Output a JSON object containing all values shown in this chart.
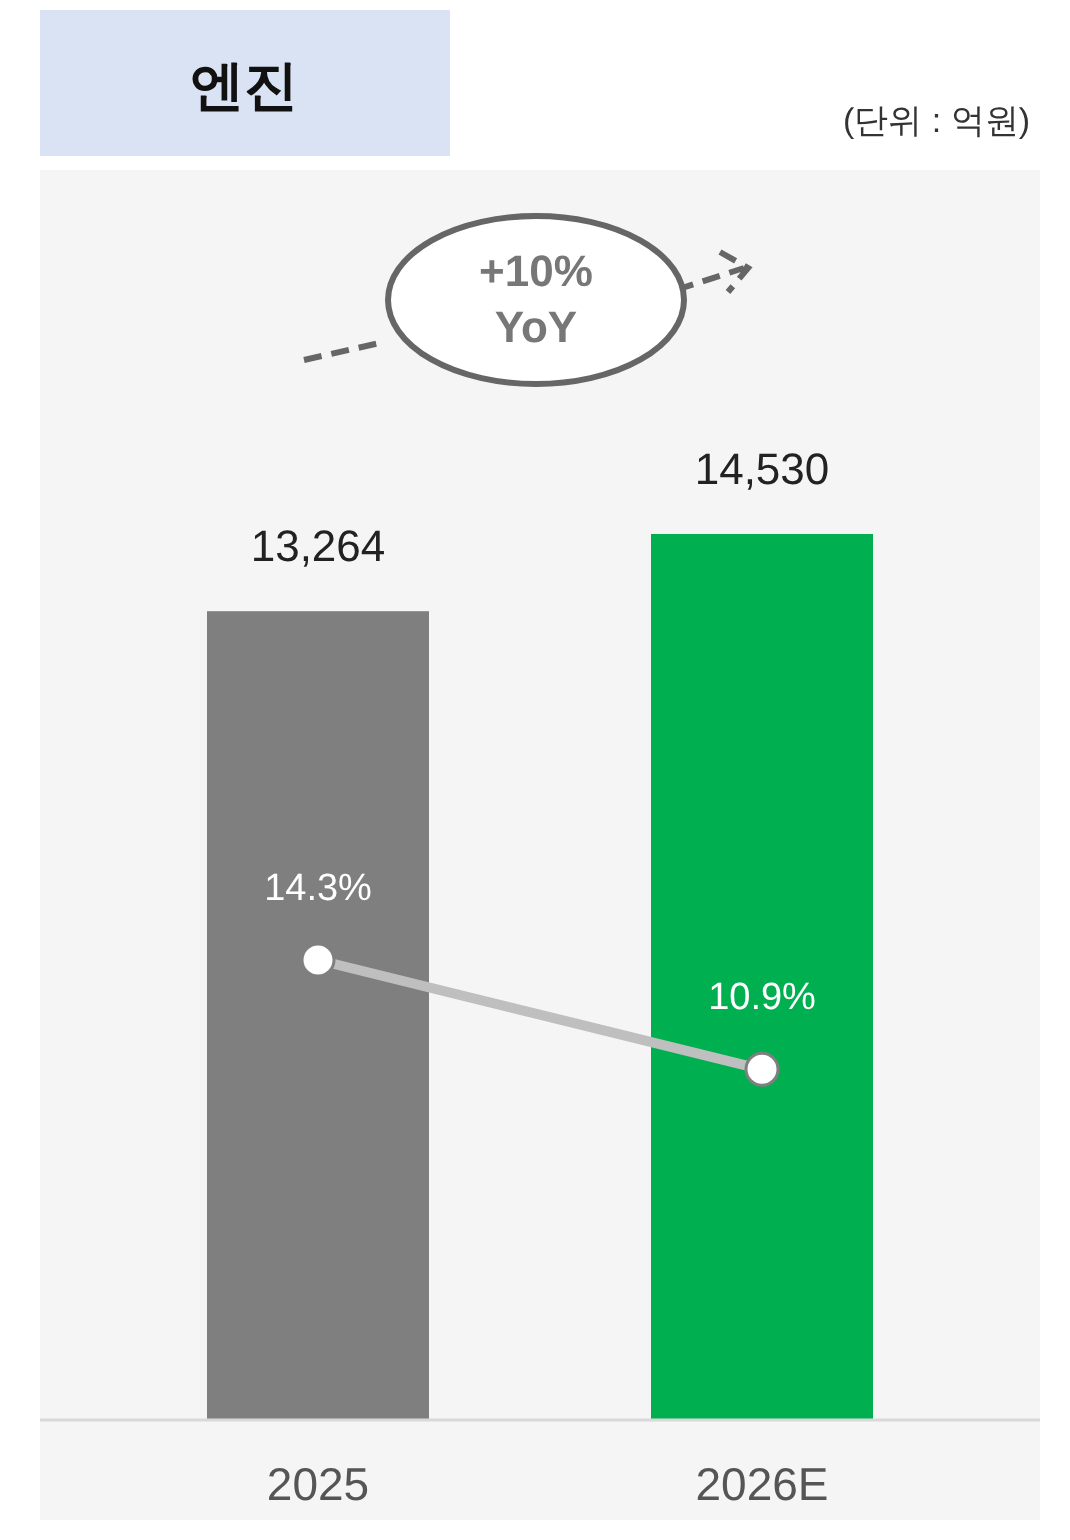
{
  "chart_data": {
    "type": "bar",
    "title": "엔진",
    "subtitle": "(단위 : 억원)",
    "categories": [
      "2025",
      "2026E"
    ],
    "series": [
      {
        "colors": [
          "#7f7f7f",
          "#00b050"
        ],
        "values": [
          13264,
          14530
        ],
        "value_labels": [
          "13,264",
          "14,530"
        ]
      },
      {
        "type": "line",
        "axis": "y2",
        "color": "#bfbfbf",
        "values": [
          14.3,
          10.9
        ],
        "value_labels": [
          "14.3%",
          "10.9%"
        ]
      }
    ],
    "tick_labels": "x",
    "marker": "circle",
    "annotations": [
      "+10% YoY"
    ]
  }
}
